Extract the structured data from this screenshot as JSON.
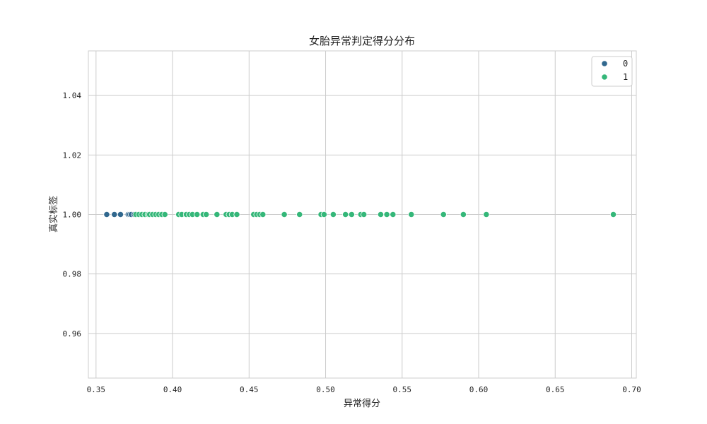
{
  "chart_data": {
    "type": "scatter",
    "title": "女胎异常判定得分分布",
    "xlabel": "异常得分",
    "ylabel": "真实标签",
    "xlim": [
      0.345,
      0.703
    ],
    "ylim": [
      0.945,
      1.055
    ],
    "xticks": [
      "0.35",
      "0.40",
      "0.45",
      "0.50",
      "0.55",
      "0.60",
      "0.65",
      "0.70"
    ],
    "yticks": [
      "0.96",
      "0.98",
      "1.00",
      "1.02",
      "1.04"
    ],
    "grid": true,
    "legend_position": "top-right",
    "series": [
      {
        "name": "0",
        "color": "#31688e",
        "points": [
          [
            0.357,
            1.0
          ],
          [
            0.362,
            1.0
          ],
          [
            0.366,
            1.0
          ],
          [
            0.371,
            1.0
          ],
          [
            0.372,
            1.0
          ],
          [
            0.373,
            1.0
          ],
          [
            0.375,
            1.0
          ]
        ]
      },
      {
        "name": "1",
        "color": "#35b779",
        "points": [
          [
            0.376,
            1.0
          ],
          [
            0.378,
            1.0
          ],
          [
            0.38,
            1.0
          ],
          [
            0.382,
            1.0
          ],
          [
            0.384,
            1.0
          ],
          [
            0.385,
            1.0
          ],
          [
            0.387,
            1.0
          ],
          [
            0.389,
            1.0
          ],
          [
            0.391,
            1.0
          ],
          [
            0.393,
            1.0
          ],
          [
            0.395,
            1.0
          ],
          [
            0.404,
            1.0
          ],
          [
            0.406,
            1.0
          ],
          [
            0.409,
            1.0
          ],
          [
            0.411,
            1.0
          ],
          [
            0.413,
            1.0
          ],
          [
            0.416,
            1.0
          ],
          [
            0.42,
            1.0
          ],
          [
            0.422,
            1.0
          ],
          [
            0.429,
            1.0
          ],
          [
            0.435,
            1.0
          ],
          [
            0.437,
            1.0
          ],
          [
            0.439,
            1.0
          ],
          [
            0.442,
            1.0
          ],
          [
            0.453,
            1.0
          ],
          [
            0.455,
            1.0
          ],
          [
            0.457,
            1.0
          ],
          [
            0.459,
            1.0
          ],
          [
            0.473,
            1.0
          ],
          [
            0.483,
            1.0
          ],
          [
            0.497,
            1.0
          ],
          [
            0.499,
            1.0
          ],
          [
            0.505,
            1.0
          ],
          [
            0.513,
            1.0
          ],
          [
            0.517,
            1.0
          ],
          [
            0.523,
            1.0
          ],
          [
            0.525,
            1.0
          ],
          [
            0.536,
            1.0
          ],
          [
            0.54,
            1.0
          ],
          [
            0.544,
            1.0
          ],
          [
            0.556,
            1.0
          ],
          [
            0.577,
            1.0
          ],
          [
            0.59,
            1.0
          ],
          [
            0.605,
            1.0
          ],
          [
            0.688,
            1.0
          ]
        ]
      }
    ]
  }
}
